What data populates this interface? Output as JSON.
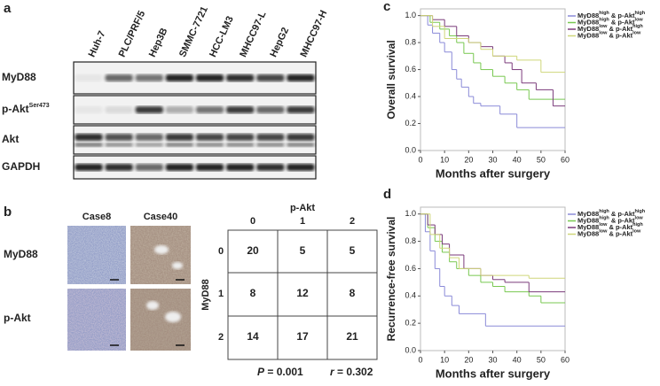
{
  "panel_a": {
    "label": "a",
    "lanes": [
      "Huh-7",
      "PLC/PRF/5",
      "Hep3B",
      "SMMC-7721",
      "HCC-LM3",
      "MHCC97-L",
      "HepG2",
      "MHCC97-H"
    ],
    "rows": [
      {
        "label": "MyD88"
      },
      {
        "label": "p-Akt",
        "sup": "Ser473"
      },
      {
        "label": "Akt"
      },
      {
        "label": "GAPDH"
      }
    ]
  },
  "panel_b": {
    "label": "b",
    "cases": [
      "Case8",
      "Case40"
    ],
    "stains": [
      "MyD88",
      "p-Akt"
    ],
    "table": {
      "col_title": "p-Akt",
      "row_title": "MyD88",
      "col_headers": [
        "0",
        "1",
        "2"
      ],
      "row_headers": [
        "0",
        "1",
        "2"
      ],
      "rows": [
        [
          "20",
          "5",
          "5"
        ],
        [
          "8",
          "12",
          "8"
        ],
        [
          "14",
          "17",
          "21"
        ]
      ],
      "p_label": "P",
      "p_text": " = 0.001",
      "r_label": "r",
      "r_text": " = 0.302"
    }
  },
  "chart_data": [
    {
      "type": "line",
      "panel": "c",
      "x_label": "Months after surgery",
      "y_label": "Overall survival",
      "xlim": [
        0,
        60
      ],
      "xticks": [
        0,
        10,
        20,
        30,
        40,
        50,
        60
      ],
      "ylim": [
        0,
        1.05
      ],
      "yticks": [
        {
          "value": 0,
          "label": "0.0"
        },
        {
          "value": 0.2,
          "label": "0.2"
        },
        {
          "value": 0.4,
          "label": "0.4"
        },
        {
          "value": 0.6,
          "label": "0.6"
        },
        {
          "value": 0.8,
          "label": "0.8"
        },
        {
          "value": 1,
          "label": "1.0"
        }
      ],
      "legend": "top right",
      "series": [
        {
          "name_parts": [
            "MyD88",
            "high",
            " & p-Akt",
            "high"
          ],
          "color": "#8a8ad8",
          "x": [
            0,
            3,
            5,
            8,
            10,
            13,
            15,
            17,
            20,
            22,
            25,
            33,
            40,
            60
          ],
          "values": [
            1,
            0.93,
            0.87,
            0.8,
            0.73,
            0.6,
            0.53,
            0.47,
            0.4,
            0.35,
            0.33,
            0.27,
            0.17,
            0.17
          ]
        },
        {
          "name_parts": [
            "MyD88",
            "high",
            " & p-Akt",
            "low"
          ],
          "color": "#78c850",
          "x": [
            0,
            4,
            8,
            12,
            15,
            18,
            22,
            25,
            30,
            35,
            40,
            45,
            60
          ],
          "values": [
            1,
            0.95,
            0.9,
            0.85,
            0.8,
            0.72,
            0.65,
            0.6,
            0.55,
            0.5,
            0.45,
            0.38,
            0.38
          ]
        },
        {
          "name_parts": [
            "MyD88",
            "low",
            " & p-Akt",
            "high"
          ],
          "color": "#7a3a7a",
          "x": [
            0,
            5,
            10,
            15,
            20,
            25,
            30,
            35,
            38,
            42,
            48,
            55,
            60
          ],
          "values": [
            1,
            0.97,
            0.92,
            0.85,
            0.8,
            0.77,
            0.7,
            0.65,
            0.6,
            0.5,
            0.45,
            0.33,
            0.33
          ]
        },
        {
          "name_parts": [
            "MyD88",
            "low",
            " & p-Akt",
            "low"
          ],
          "color": "#cfd67a",
          "x": [
            0,
            5,
            10,
            20,
            25,
            30,
            40,
            50,
            60
          ],
          "values": [
            1,
            0.92,
            0.83,
            0.8,
            0.75,
            0.7,
            0.67,
            0.58,
            0.58
          ]
        }
      ]
    },
    {
      "type": "line",
      "panel": "d",
      "x_label": "Months after surgery",
      "y_label": "Recurrence-free survival",
      "xlim": [
        0,
        60
      ],
      "xticks": [
        0,
        10,
        20,
        30,
        40,
        50,
        60
      ],
      "ylim": [
        0,
        1.05
      ],
      "yticks": [
        {
          "value": 0,
          "label": "0.0"
        },
        {
          "value": 0.2,
          "label": "0.2"
        },
        {
          "value": 0.4,
          "label": "0.4"
        },
        {
          "value": 0.6,
          "label": "0.6"
        },
        {
          "value": 0.8,
          "label": "0.8"
        },
        {
          "value": 1,
          "label": "1.0"
        }
      ],
      "legend": "top right",
      "series": [
        {
          "name_parts": [
            "MyD88",
            "high",
            " & p-Akt",
            "high"
          ],
          "color": "#8a8ad8",
          "x": [
            0,
            2,
            4,
            6,
            8,
            10,
            13,
            16,
            27,
            60
          ],
          "values": [
            1,
            0.87,
            0.73,
            0.6,
            0.47,
            0.4,
            0.33,
            0.27,
            0.18,
            0.18
          ]
        },
        {
          "name_parts": [
            "MyD88",
            "high",
            " & p-Akt",
            "low"
          ],
          "color": "#78c850",
          "x": [
            0,
            3,
            6,
            9,
            12,
            15,
            20,
            25,
            30,
            35,
            45,
            50,
            60
          ],
          "values": [
            1,
            0.9,
            0.8,
            0.72,
            0.65,
            0.6,
            0.55,
            0.5,
            0.47,
            0.43,
            0.4,
            0.35,
            0.35
          ]
        },
        {
          "name_parts": [
            "MyD88",
            "low",
            " & p-Akt",
            "high"
          ],
          "color": "#7a3a7a",
          "x": [
            0,
            3,
            6,
            9,
            12,
            18,
            25,
            30,
            35,
            45,
            60
          ],
          "values": [
            1,
            0.92,
            0.85,
            0.78,
            0.7,
            0.6,
            0.55,
            0.52,
            0.5,
            0.43,
            0.43
          ]
        },
        {
          "name_parts": [
            "MyD88",
            "low",
            " & p-Akt",
            "low"
          ],
          "color": "#cfd67a",
          "x": [
            0,
            4,
            8,
            12,
            16,
            25,
            45,
            60
          ],
          "values": [
            1,
            0.85,
            0.75,
            0.68,
            0.6,
            0.55,
            0.53,
            0.53
          ]
        }
      ]
    }
  ]
}
